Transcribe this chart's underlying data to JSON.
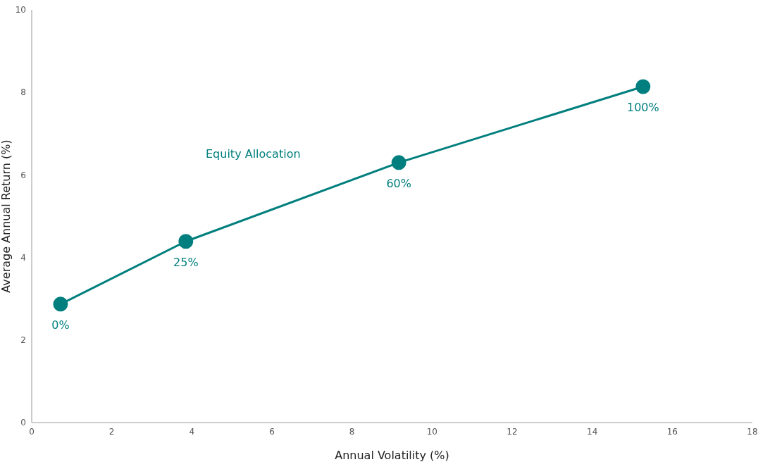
{
  "chart_data": {
    "type": "line",
    "xlabel": "Annual Volatility (%)",
    "ylabel": "Average Annual Return (%)",
    "x": [
      0.72,
      3.85,
      9.17,
      15.27
    ],
    "series": [
      {
        "color": "#007f7e",
        "values": [
          2.87,
          4.39,
          6.3,
          8.14
        ]
      }
    ],
    "annotations": [
      "Equity Allocation",
      {
        "text": "0%",
        "x": 0.72,
        "y": 2.87
      },
      {
        "text": "25%",
        "x": 3.85,
        "y": 4.39
      },
      {
        "text": "60%",
        "x": 9.17,
        "y": 6.3
      },
      {
        "text": "100%",
        "x": 15.27,
        "y": 8.14
      }
    ],
    "xlim": [
      0,
      18
    ],
    "xticks": [
      0,
      2,
      4,
      6,
      8,
      10,
      12,
      14,
      16,
      18
    ],
    "ylim": [
      0,
      10
    ],
    "yticks": [
      0,
      2,
      4,
      6,
      8,
      10
    ],
    "grid": false,
    "legend": false,
    "marker": "circle",
    "line_style": "solid"
  }
}
